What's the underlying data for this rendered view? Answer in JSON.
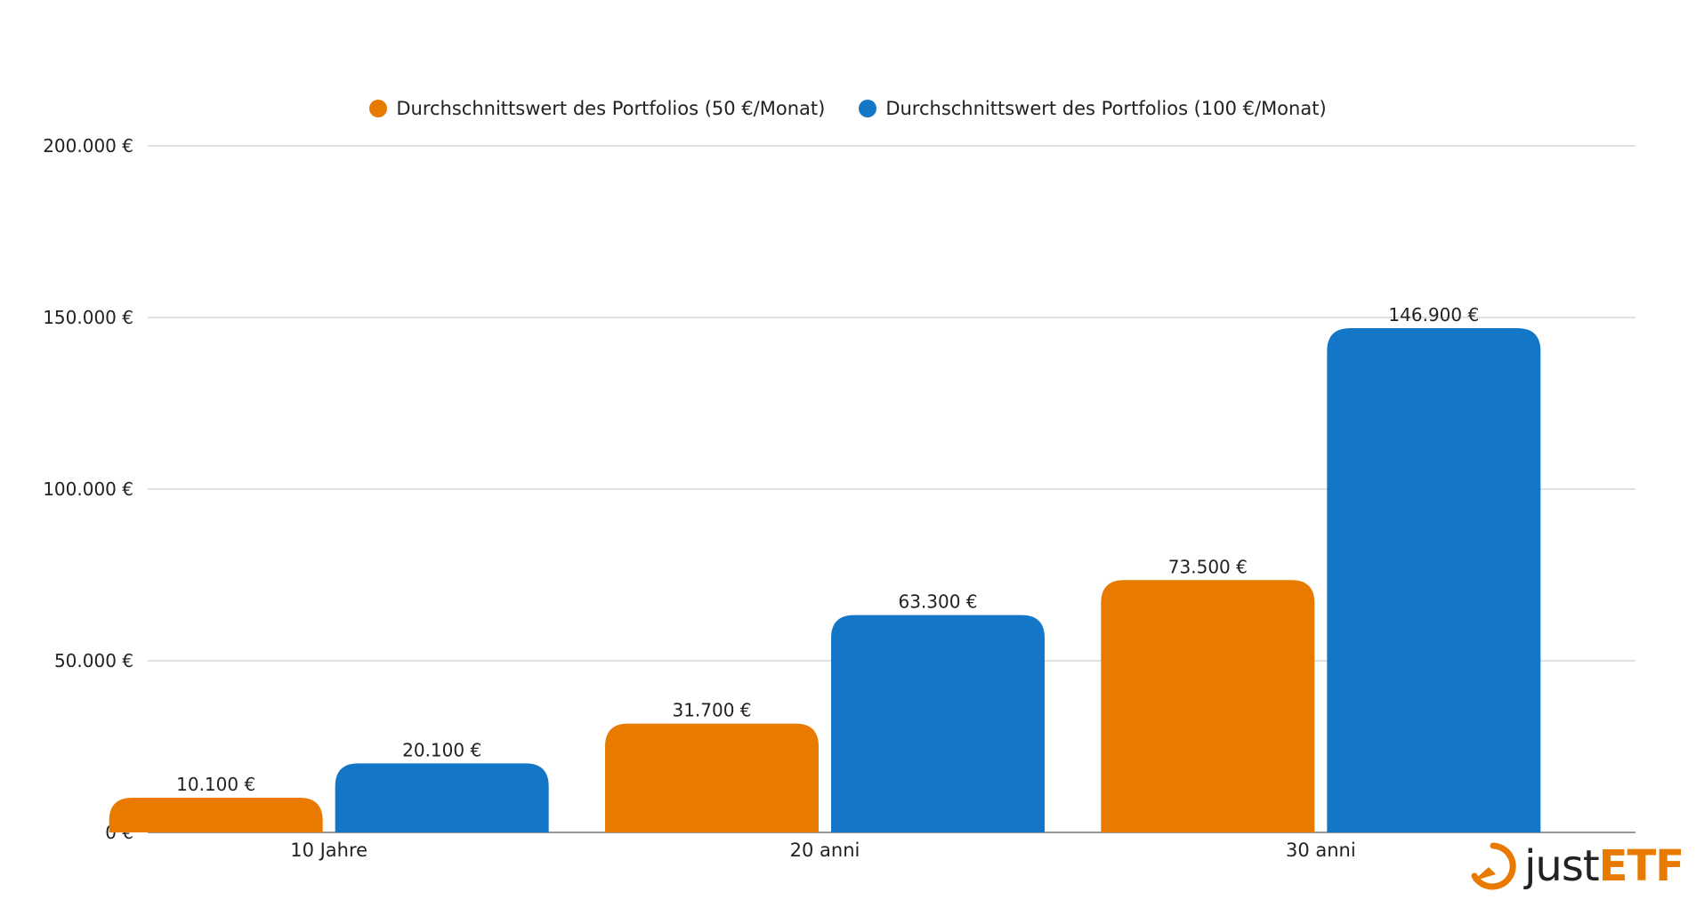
{
  "chart_data": {
    "type": "bar",
    "categories": [
      "10 Jahre",
      "20 anni",
      "30 anni"
    ],
    "series": [
      {
        "name": "Durchschnittswert des Portfolios (50 €/Monat)",
        "values": [
          10100,
          31700,
          73500
        ],
        "labels": [
          "10.100 €",
          "31.700 €",
          "73.500 €"
        ]
      },
      {
        "name": "Durchschnittswert des Portfolios (100 €/Monat)",
        "values": [
          20100,
          63300,
          146900
        ],
        "labels": [
          "20.100 €",
          "63.300 €",
          "146.900 €"
        ]
      }
    ],
    "ylim": [
      0,
      200000
    ],
    "yticks": [
      0,
      50000,
      100000,
      150000,
      200000
    ],
    "ytick_labels": [
      "0 €",
      "50.000 €",
      "100.000 €",
      "150.000 €",
      "200.000 €"
    ],
    "grid": true,
    "legend": "top-center",
    "colors": [
      "#e97a00",
      "#1476c6"
    ]
  },
  "logo": {
    "just": "just",
    "etf": "ETF"
  }
}
